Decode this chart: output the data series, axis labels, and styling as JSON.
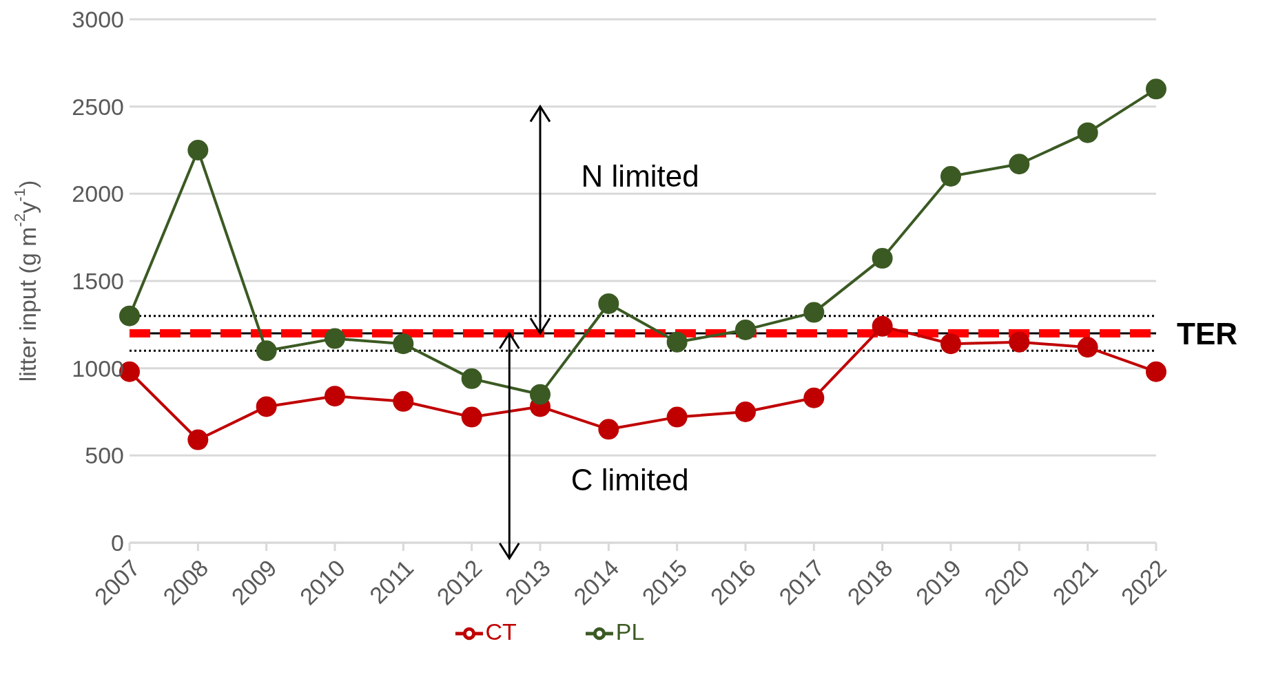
{
  "chart_data": {
    "type": "line",
    "ylabel": "litter input (g m$^{-2}$y$^{-1}$)",
    "categories": [
      "2007",
      "2008",
      "2009",
      "2010",
      "2011",
      "2012",
      "2013",
      "2014",
      "2015",
      "2016",
      "2017",
      "2018",
      "2019",
      "2020",
      "2021",
      "2022"
    ],
    "series": [
      {
        "name": "CT",
        "color": "#c00000",
        "values": [
          980,
          590,
          780,
          840,
          810,
          720,
          780,
          650,
          720,
          750,
          830,
          1240,
          1140,
          1150,
          1120,
          980
        ]
      },
      {
        "name": "PL",
        "color": "#3b5a23",
        "values": [
          1300,
          2250,
          1100,
          1170,
          1140,
          940,
          850,
          1370,
          1150,
          1220,
          1320,
          1630,
          2100,
          2170,
          2350,
          2600
        ]
      }
    ],
    "ylim": [
      0,
      3000
    ],
    "yticks": [
      0,
      500,
      1000,
      1500,
      2000,
      2500,
      3000
    ],
    "grid": "y",
    "legend": "bottom",
    "marker": "circle",
    "line_style": "solid",
    "ref_lines": [
      {
        "axis": "y",
        "value": 1300,
        "color": "#000000",
        "line_style": "dotted"
      },
      {
        "axis": "y",
        "value": 1100,
        "color": "#000000",
        "line_style": "dotted"
      },
      {
        "axis": "y",
        "value": 1200,
        "color": "#000000",
        "line_style": "solid"
      },
      {
        "axis": "y",
        "value": 1200,
        "label": "TER",
        "color": "#ff0000",
        "line_style": "dashed"
      }
    ],
    "annotations": [
      "N limited",
      "C limited"
    ]
  }
}
